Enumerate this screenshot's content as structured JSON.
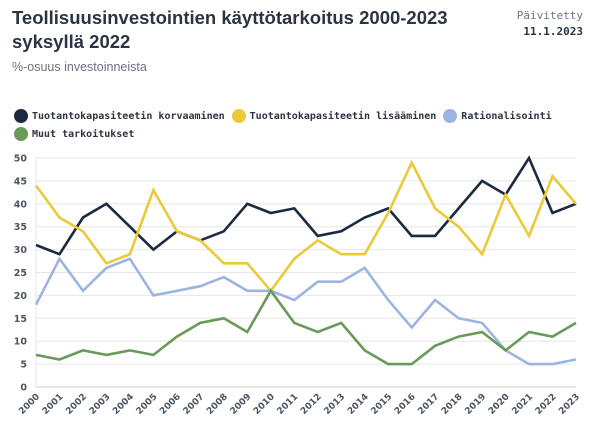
{
  "header": {
    "title": "Teollisuusinvestointien käyttötarkoitus 2000-2023 syksyllä 2022",
    "subtitle": "%-osuus investoinneista",
    "updated_label": "Päivitetty",
    "updated_date": "11.1.2023"
  },
  "chart_data": {
    "type": "line",
    "title": "Teollisuusinvestointien käyttötarkoitus 2000-2023 syksyllä 2022",
    "subtitle": "%-osuus investoinneista",
    "xlabel": "",
    "ylabel": "",
    "ylim": [
      0,
      50
    ],
    "yticks": [
      0,
      5,
      10,
      15,
      20,
      25,
      30,
      35,
      40,
      45,
      50
    ],
    "grid": true,
    "legend_position": "top-left",
    "x": [
      "2000",
      "2001",
      "2002",
      "2003",
      "2004",
      "2005",
      "2006",
      "2007",
      "2008",
      "2009",
      "2010",
      "2011",
      "2012",
      "2013",
      "2014",
      "2015",
      "2016",
      "2017",
      "2018",
      "2019",
      "2020",
      "2021",
      "2022",
      "2023"
    ],
    "series": [
      {
        "name": "Tuotantokapasiteetin korvaaminen",
        "color": "#1b2a3f",
        "values": [
          31,
          29,
          37,
          40,
          35,
          30,
          34,
          32,
          34,
          40,
          38,
          39,
          33,
          34,
          37,
          39,
          33,
          33,
          39,
          45,
          42,
          50,
          38,
          40
        ]
      },
      {
        "name": "Tuotantokapasiteetin lisääminen",
        "color": "#ecc936",
        "values": [
          44,
          37,
          34,
          27,
          29,
          43,
          34,
          32,
          27,
          27,
          21,
          28,
          32,
          29,
          29,
          38,
          49,
          39,
          35,
          29,
          42,
          33,
          46,
          40
        ]
      },
      {
        "name": "Rationalisointi",
        "color": "#9db4e3",
        "values": [
          18,
          28,
          21,
          26,
          28,
          20,
          21,
          22,
          24,
          21,
          21,
          19,
          23,
          23,
          26,
          19,
          13,
          19,
          15,
          14,
          8,
          5,
          5,
          6
        ]
      },
      {
        "name": "Muut tarkoitukset",
        "color": "#6a9a58",
        "values": [
          7,
          6,
          8,
          7,
          8,
          7,
          11,
          14,
          15,
          12,
          21,
          14,
          12,
          14,
          8,
          5,
          5,
          9,
          11,
          12,
          8,
          12,
          11,
          14
        ]
      }
    ]
  },
  "colors": {
    "grid": "#e6e6e6",
    "axis": "#cfcfcf",
    "text": "#2b3440",
    "muted": "#6b7280"
  }
}
